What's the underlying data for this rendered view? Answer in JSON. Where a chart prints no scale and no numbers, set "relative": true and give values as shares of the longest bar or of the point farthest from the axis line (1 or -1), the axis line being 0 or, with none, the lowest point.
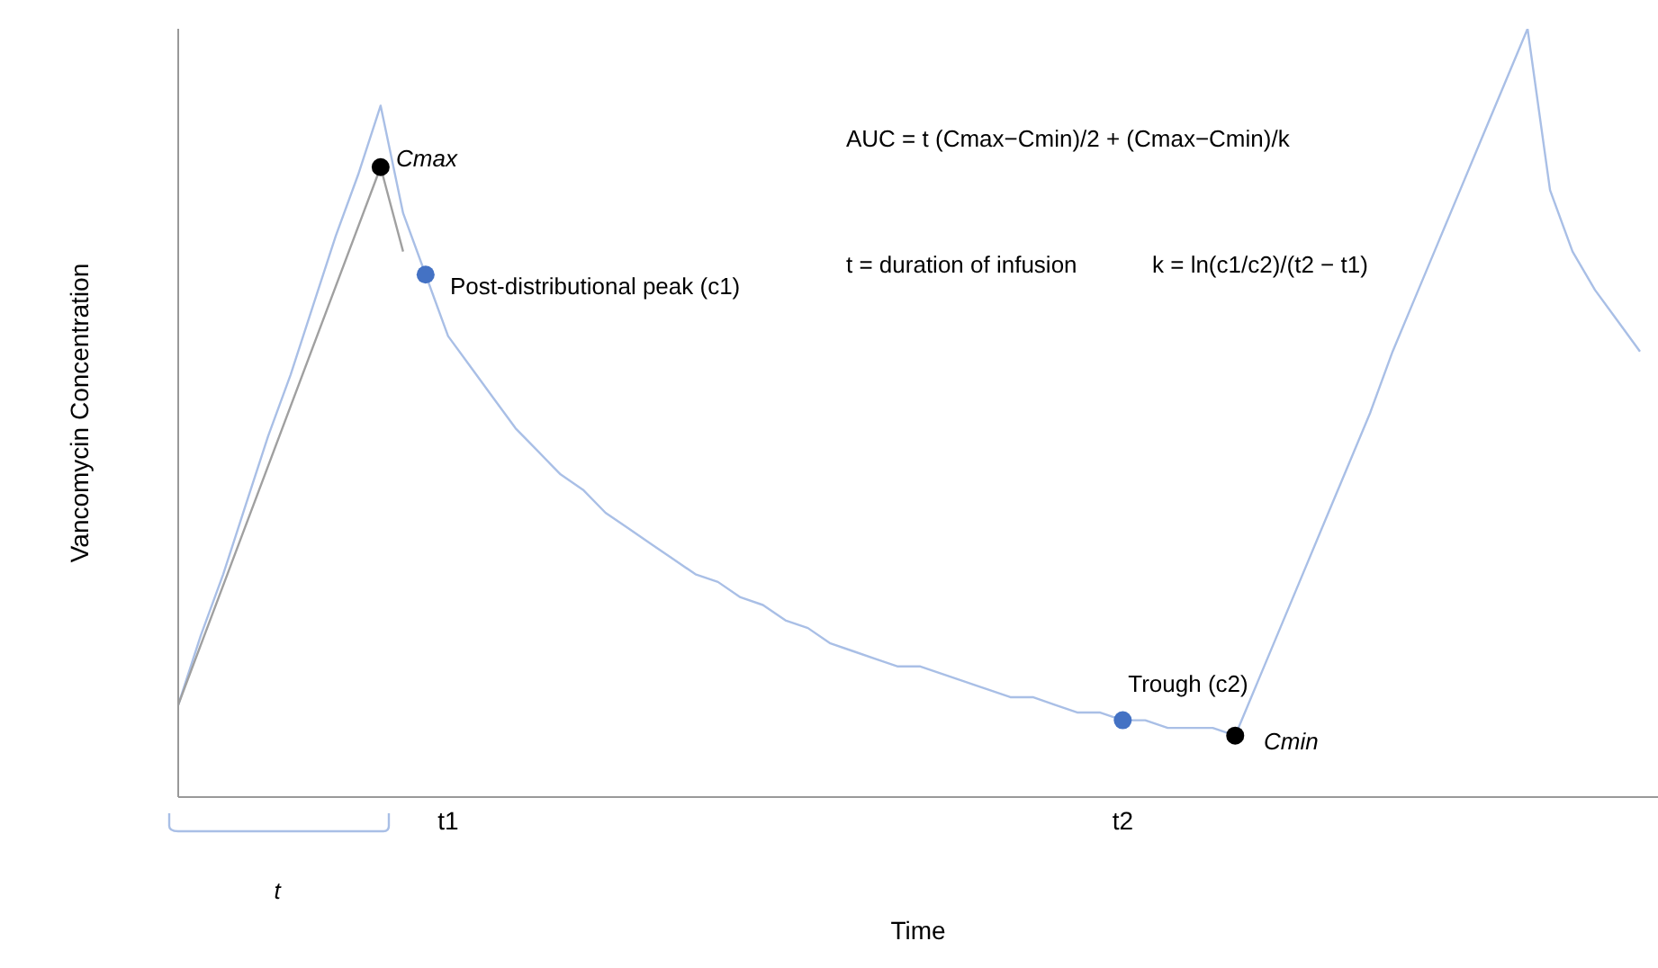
{
  "chart_data": {
    "type": "line",
    "relative": true,
    "xlabel": "Time",
    "ylabel": "Vancomycin Concentration",
    "tick_labels": "x",
    "grid": false,
    "marker": "none",
    "categories": [
      null,
      null,
      null,
      null,
      null,
      null,
      null,
      null,
      null,
      null,
      null,
      null,
      "t1",
      null,
      null,
      null,
      null,
      null,
      null,
      null,
      null,
      null,
      null,
      null,
      null,
      null,
      null,
      null,
      null,
      null,
      null,
      null,
      null,
      null,
      null,
      null,
      null,
      null,
      null,
      null,
      null,
      null,
      "t2",
      null,
      null,
      null,
      null,
      null,
      null,
      null,
      null,
      null,
      null,
      null,
      null,
      null,
      null,
      null,
      null,
      null,
      null,
      null,
      null,
      null,
      null,
      null
    ],
    "series": [
      {
        "color": "#a9bfe6",
        "values": [
          0.12,
          0.21,
          0.29,
          0.38,
          0.47,
          0.55,
          0.64,
          0.73,
          0.81,
          0.9,
          0.76,
          0.68,
          0.6,
          0.56,
          0.52,
          0.48,
          0.45,
          0.42,
          0.4,
          0.37,
          0.35,
          0.33,
          0.31,
          0.29,
          0.28,
          0.26,
          0.25,
          0.23,
          0.22,
          0.2,
          0.19,
          0.18,
          0.17,
          0.17,
          0.16,
          0.15,
          0.14,
          0.13,
          0.13,
          0.12,
          0.11,
          0.11,
          0.1,
          0.1,
          0.09,
          0.09,
          0.09,
          0.08,
          0.15,
          0.22,
          0.29,
          0.36,
          0.43,
          0.5,
          0.58,
          0.65,
          0.72,
          0.79,
          0.86,
          0.93,
          1,
          0.79,
          0.71,
          0.66,
          0.62,
          0.58
        ]
      },
      {
        "color": "#a0a0a0",
        "values": [
          0.12,
          null,
          null,
          null,
          null,
          null,
          null,
          null,
          null,
          0.82,
          0.71,
          null,
          null,
          null,
          null,
          null,
          null,
          null,
          null,
          null,
          null,
          null,
          null,
          null,
          null,
          null,
          null,
          null,
          null,
          null,
          null,
          null,
          null,
          null,
          null,
          null,
          null,
          null,
          null,
          null,
          null,
          null,
          null,
          null,
          null,
          null,
          null,
          null,
          null,
          null,
          null,
          null,
          null,
          null,
          null,
          null,
          null,
          null,
          null,
          null,
          null,
          null,
          null,
          null,
          null,
          null
        ]
      },
      {
        "type": "scatter",
        "marker": "circle",
        "color": "#000000",
        "values": [
          null,
          null,
          null,
          null,
          null,
          null,
          null,
          null,
          null,
          0.82,
          null,
          null,
          null,
          null,
          null,
          null,
          null,
          null,
          null,
          null,
          null,
          null,
          null,
          null,
          null,
          null,
          null,
          null,
          null,
          null,
          null,
          null,
          null,
          null,
          null,
          null,
          null,
          null,
          null,
          null,
          null,
          null,
          null,
          null,
          null,
          null,
          null,
          0.08,
          null,
          null,
          null,
          null,
          null,
          null,
          null,
          null,
          null,
          null,
          null,
          null,
          null,
          null,
          null,
          null,
          null,
          null
        ]
      },
      {
        "type": "scatter",
        "marker": "circle",
        "color": "#4472c4",
        "values": [
          null,
          null,
          null,
          null,
          null,
          null,
          null,
          null,
          null,
          null,
          null,
          0.68,
          null,
          null,
          null,
          null,
          null,
          null,
          null,
          null,
          null,
          null,
          null,
          null,
          null,
          null,
          null,
          null,
          null,
          null,
          null,
          null,
          null,
          null,
          null,
          null,
          null,
          null,
          null,
          null,
          null,
          null,
          0.1,
          null,
          null,
          null,
          null,
          null,
          null,
          null,
          null,
          null,
          null,
          null,
          null,
          null,
          null,
          null,
          null,
          null,
          null,
          null,
          null,
          null,
          null,
          null
        ]
      }
    ],
    "annotations": [
      "Cmax",
      "Post-distributional peak (c1)",
      "Trough (c2)",
      "Cmin",
      "AUC = t (Cmax−Cmin)/2 + (Cmax−Cmin)/k",
      "t = duration of infusion",
      "k = ln(c1/c2)/(t2 − t1)",
      "t"
    ]
  }
}
